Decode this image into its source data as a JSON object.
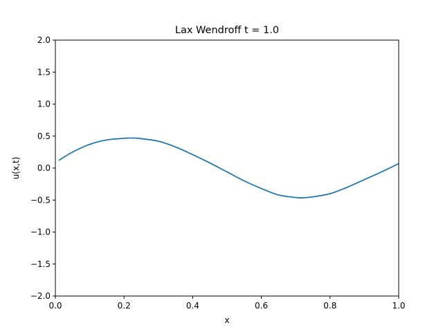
{
  "chart_data": {
    "type": "line",
    "title": "Lax Wendroff t = 1.0",
    "xlabel": "x",
    "ylabel": "u(x,t)",
    "xlim": [
      0.0,
      1.0
    ],
    "ylim": [
      -2.0,
      2.0
    ],
    "grid": false,
    "x_ticks": [
      "0.0",
      "0.2",
      "0.4",
      "0.6",
      "0.8",
      "1.0"
    ],
    "y_ticks": [
      "−2.0",
      "−1.5",
      "−1.0",
      "−0.5",
      "0.0",
      "0.5",
      "1.0",
      "1.5",
      "2.0"
    ],
    "series": [
      {
        "color": "#1f77b4",
        "x": [
          0.01,
          0.05,
          0.1,
          0.15,
          0.2,
          0.22,
          0.25,
          0.3,
          0.35,
          0.4,
          0.45,
          0.5,
          0.55,
          0.6,
          0.65,
          0.7,
          0.72,
          0.75,
          0.8,
          0.85,
          0.9,
          0.95,
          1.0
        ],
        "y": [
          0.12,
          0.25,
          0.37,
          0.44,
          0.465,
          0.47,
          0.46,
          0.42,
          0.33,
          0.21,
          0.08,
          -0.06,
          -0.2,
          -0.32,
          -0.42,
          -0.46,
          -0.465,
          -0.45,
          -0.4,
          -0.3,
          -0.18,
          -0.06,
          0.07
        ]
      }
    ]
  }
}
